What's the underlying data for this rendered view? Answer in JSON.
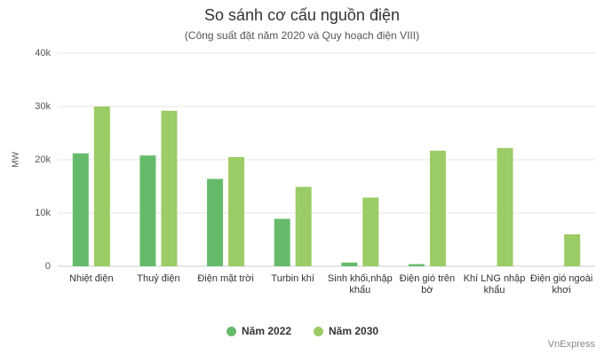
{
  "chart_data": {
    "type": "bar",
    "title": "So sánh cơ cấu nguồn điện",
    "subtitle": "(Công suất đặt năm 2020 và Quy hoạch điện VIII)",
    "y_label": "MW",
    "categories": [
      "Nhiệt điện",
      "Thuỷ điện",
      "Điện mặt trời",
      "Turbin khí",
      "Sinh khối,nhập khẩu",
      "Điện gió trên bờ",
      "Khí LNG nhập khẩu",
      "Điện gió ngoài khơi"
    ],
    "series": [
      {
        "name": "Năm 2022",
        "color": "#66bb6a",
        "values": [
          21200,
          20800,
          16400,
          8900,
          700,
          400,
          0,
          0
        ]
      },
      {
        "name": "Năm 2030",
        "color": "#9ccc65",
        "values": [
          30000,
          29200,
          20500,
          14900,
          12900,
          21700,
          22200,
          6000
        ]
      }
    ],
    "ylim": [
      0,
      40000
    ],
    "yticks": [
      0,
      {
        "value": 10000,
        "label": "10k"
      },
      {
        "value": 20000,
        "label": "20k"
      },
      {
        "value": 30000,
        "label": "30k"
      },
      {
        "value": 40000,
        "label": "40k"
      }
    ],
    "grid": true,
    "legend": "bottom",
    "credit": "VnExpress"
  }
}
